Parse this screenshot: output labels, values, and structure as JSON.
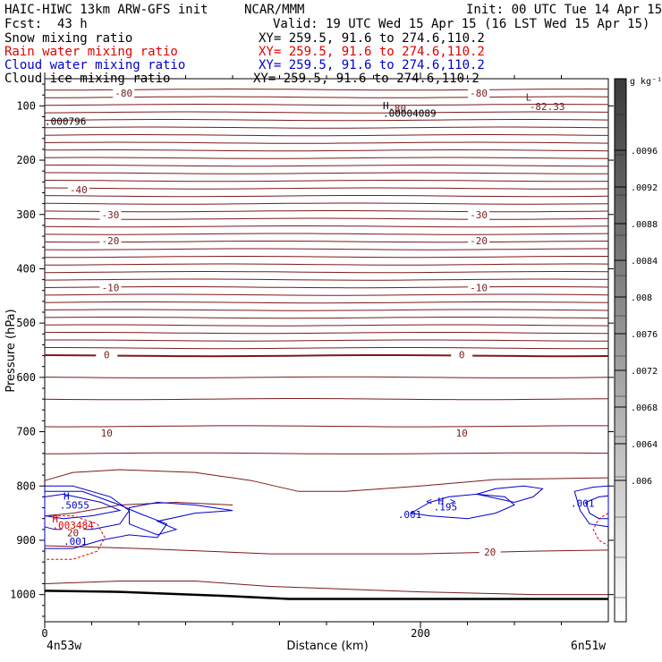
{
  "header": {
    "model": "HAIC-HIWC 13km ARW-GFS init",
    "center": "NCAR/MMM",
    "init": "Init: 00 UTC Tue 14 Apr 15",
    "fcst_label": "Fcst:",
    "fcst_value": "43 h",
    "valid": "Valid: 19 UTC Wed 15 Apr 15 (16 LST Wed 15 Apr 15)"
  },
  "fields": [
    {
      "name": "Snow mixing ratio",
      "xy": "XY= 259.5, 91.6 to 274.6,110.2",
      "color": "#000000"
    },
    {
      "name": "Rain water mixing ratio",
      "xy": "XY= 259.5, 91.6 to 274.6,110.2",
      "color": "#e00000"
    },
    {
      "name": "Cloud water mixing ratio",
      "xy": "XY= 259.5, 91.6 to 274.6,110.2",
      "color": "#0000cc"
    },
    {
      "name": "Cloud ice mixing ratio",
      "xy": "XY= 259.5, 91.6 to 274.6,110.2",
      "color": "#000000"
    }
  ],
  "chart_data": {
    "type": "contour cross-section",
    "xlabel": "Distance (km)",
    "ylabel": "Pressure (hPa)",
    "xlim": [
      0,
      300
    ],
    "ylim": [
      1050,
      50
    ],
    "x_ticks": [
      "0",
      "200"
    ],
    "x_tick_values": [
      0,
      200
    ],
    "y_ticks": [
      "100",
      "200",
      "300",
      "400",
      "500",
      "600",
      "700",
      "800",
      "900",
      "1000"
    ],
    "y_tick_values": [
      100,
      200,
      300,
      400,
      500,
      600,
      700,
      800,
      900,
      1000
    ],
    "endpoints": {
      "left": "4n53w",
      "right": "6n51w"
    },
    "temperature_contour_labels": [
      {
        "text": "-80",
        "x": 42,
        "p": 78
      },
      {
        "text": "-80",
        "x": 231,
        "p": 78
      },
      {
        "text": "-40",
        "x": 18,
        "p": 256
      },
      {
        "text": "-30",
        "x": 35,
        "p": 302
      },
      {
        "text": "-30",
        "x": 231,
        "p": 302
      },
      {
        "text": "-20",
        "x": 35,
        "p": 350
      },
      {
        "text": "-20",
        "x": 231,
        "p": 350
      },
      {
        "text": "-10",
        "x": 35,
        "p": 436
      },
      {
        "text": "-10",
        "x": 231,
        "p": 436
      },
      {
        "text": "0",
        "x": 33,
        "p": 560
      },
      {
        "text": "0",
        "x": 222,
        "p": 560
      },
      {
        "text": "10",
        "x": 33,
        "p": 704
      },
      {
        "text": "10",
        "x": 222,
        "p": 704
      },
      {
        "text": "20",
        "x": 15,
        "p": 888
      },
      {
        "text": "20",
        "x": 237,
        "p": 923
      }
    ],
    "extrema_labels": [
      {
        "text": "L",
        "x": 256,
        "p": 90,
        "color": "#7a1a1a"
      },
      {
        "text": "-82.33",
        "x": 258,
        "p": 108,
        "color": "#7a1a1a"
      },
      {
        "text": "H",
        "x": 180,
        "p": 106,
        "color": "#000000"
      },
      {
        "text": "-80",
        "x": 183,
        "p": 111,
        "color": "#7a1a1a"
      },
      {
        "text": ".00004089",
        "x": 180,
        "p": 120,
        "color": "#000000"
      },
      {
        "text": ".000796",
        "x": 0,
        "p": 135,
        "color": "#000000"
      },
      {
        "text": "H",
        "x": 10,
        "p": 825,
        "color": "#0000cc"
      },
      {
        "text": ".5055",
        "x": 8,
        "p": 842,
        "color": "#0000cc"
      },
      {
        "text": "H",
        "x": 4,
        "p": 867,
        "color": "#e00000"
      },
      {
        "text": ".003484",
        "x": 4,
        "p": 879,
        "color": "#e00000"
      },
      {
        "text": ".001",
        "x": 10,
        "p": 908,
        "color": "#0000cc"
      },
      {
        "text": "< H >",
        "x": 203,
        "p": 834,
        "color": "#0000cc"
      },
      {
        "text": ".195",
        "x": 207,
        "p": 845,
        "color": "#0000cc"
      },
      {
        "text": ".001",
        "x": 188,
        "p": 859,
        "color": "#0000cc"
      },
      {
        "text": ".001",
        "x": 280,
        "p": 838,
        "color": "#0000cc"
      }
    ],
    "colorbar": {
      "units": "g kg⁻¹",
      "ticks": [
        ".0096",
        ".0092",
        ".0088",
        ".0084",
        ".008",
        ".0076",
        ".0072",
        ".0068",
        ".0064",
        ".006"
      ]
    }
  }
}
